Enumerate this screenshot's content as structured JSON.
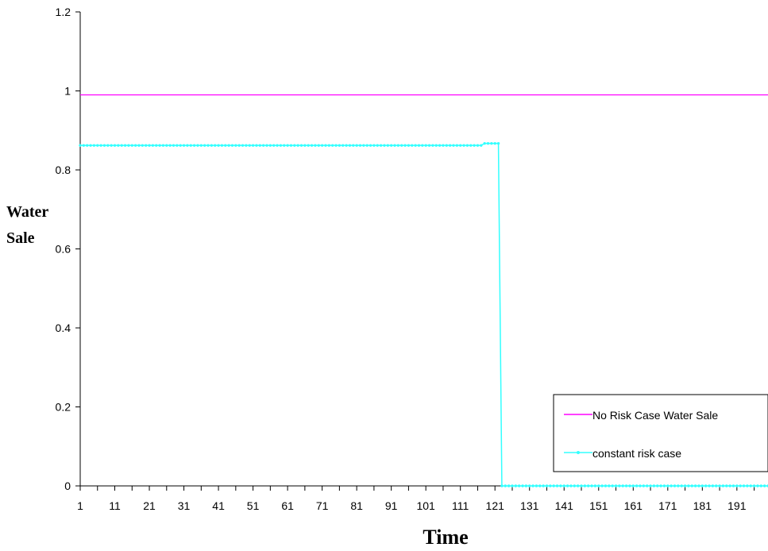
{
  "chart_data": {
    "type": "line",
    "title": "",
    "xlabel": "Time",
    "ylabel": "Water Sale",
    "ylabel_lines": [
      "Water",
      "Sale"
    ],
    "x_range": [
      1,
      200
    ],
    "x_tick_labels": [
      "1",
      "11",
      "21",
      "31",
      "41",
      "51",
      "61",
      "71",
      "81",
      "91",
      "101",
      "111",
      "121",
      "131",
      "141",
      "151",
      "161",
      "171",
      "181",
      "191"
    ],
    "ylim": [
      0,
      1.2
    ],
    "y_tick_labels": [
      "0",
      "0.2",
      "0.4",
      "0.6",
      "0.8",
      "1",
      "1.2"
    ],
    "grid": false,
    "legend_position": "bottom-right",
    "series": [
      {
        "name": "No Risk Case Water Sale",
        "color": "#ff00ff",
        "marker": "none",
        "segments": [
          {
            "from": 1,
            "to": 200,
            "value": 0.99
          }
        ]
      },
      {
        "name": "constant risk case",
        "color": "#33ffff",
        "marker": "dot",
        "segments": [
          {
            "from": 1,
            "to": 117,
            "value": 0.862
          },
          {
            "from": 118,
            "to": 122,
            "value": 0.867
          },
          {
            "from": 123,
            "to": 200,
            "value": 0.0
          }
        ]
      }
    ]
  }
}
